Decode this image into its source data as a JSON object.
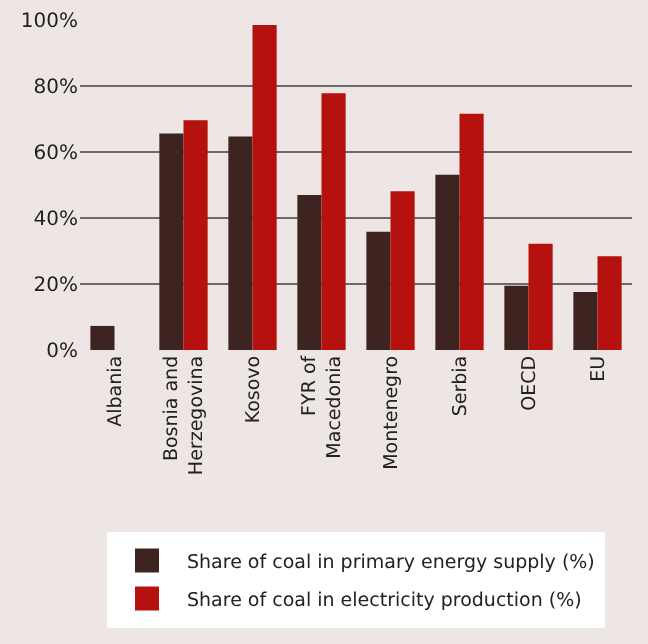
{
  "chart_data": {
    "type": "bar",
    "categories": [
      "Albania",
      "Bosnia and Herzegovina",
      "Kosovo",
      "FYR of Macedonia",
      "Montenegro",
      "Serbia",
      "OECD",
      "EU"
    ],
    "series": [
      {
        "name": "Share of coal in primary energy supply (%)",
        "color": "#3d2420",
        "values": [
          7.3,
          65.6,
          64.7,
          47,
          35.8,
          53.1,
          19.5,
          17.6
        ]
      },
      {
        "name": "Share of coal in electricity production (%)",
        "color": "#b5120f",
        "values": [
          null,
          69.6,
          98.5,
          77.8,
          48.1,
          71.6,
          32.2,
          28.4
        ]
      }
    ],
    "ylim": [
      0,
      100
    ],
    "yticks": [
      {
        "value": 0,
        "label": "0%"
      },
      {
        "value": 20,
        "label": "20%"
      },
      {
        "value": 40,
        "label": "40%"
      },
      {
        "value": 60,
        "label": "60%"
      },
      {
        "value": 80,
        "label": "80%"
      },
      {
        "value": 100,
        "label": "100%"
      }
    ],
    "grid": "y",
    "legend": "bottom"
  }
}
